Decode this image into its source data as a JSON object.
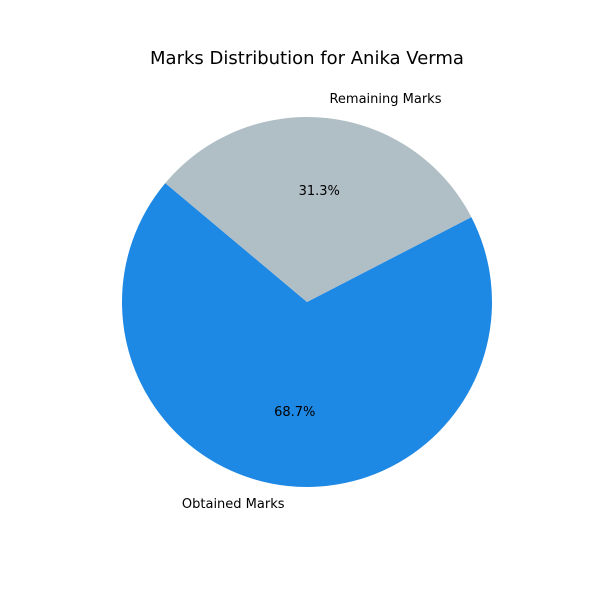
{
  "chart_data": {
    "type": "pie",
    "title": "Marks Distribution for Anika Verma",
    "categories": [
      "Obtained Marks",
      "Remaining Marks"
    ],
    "values": [
      68.7,
      31.3
    ],
    "percent_labels": [
      "68.7%",
      "31.3%"
    ],
    "colors": [
      "#1e88e5",
      "#b0bec5"
    ],
    "start_angle_deg": 140,
    "direction": "counterclockwise",
    "legend": "none"
  }
}
